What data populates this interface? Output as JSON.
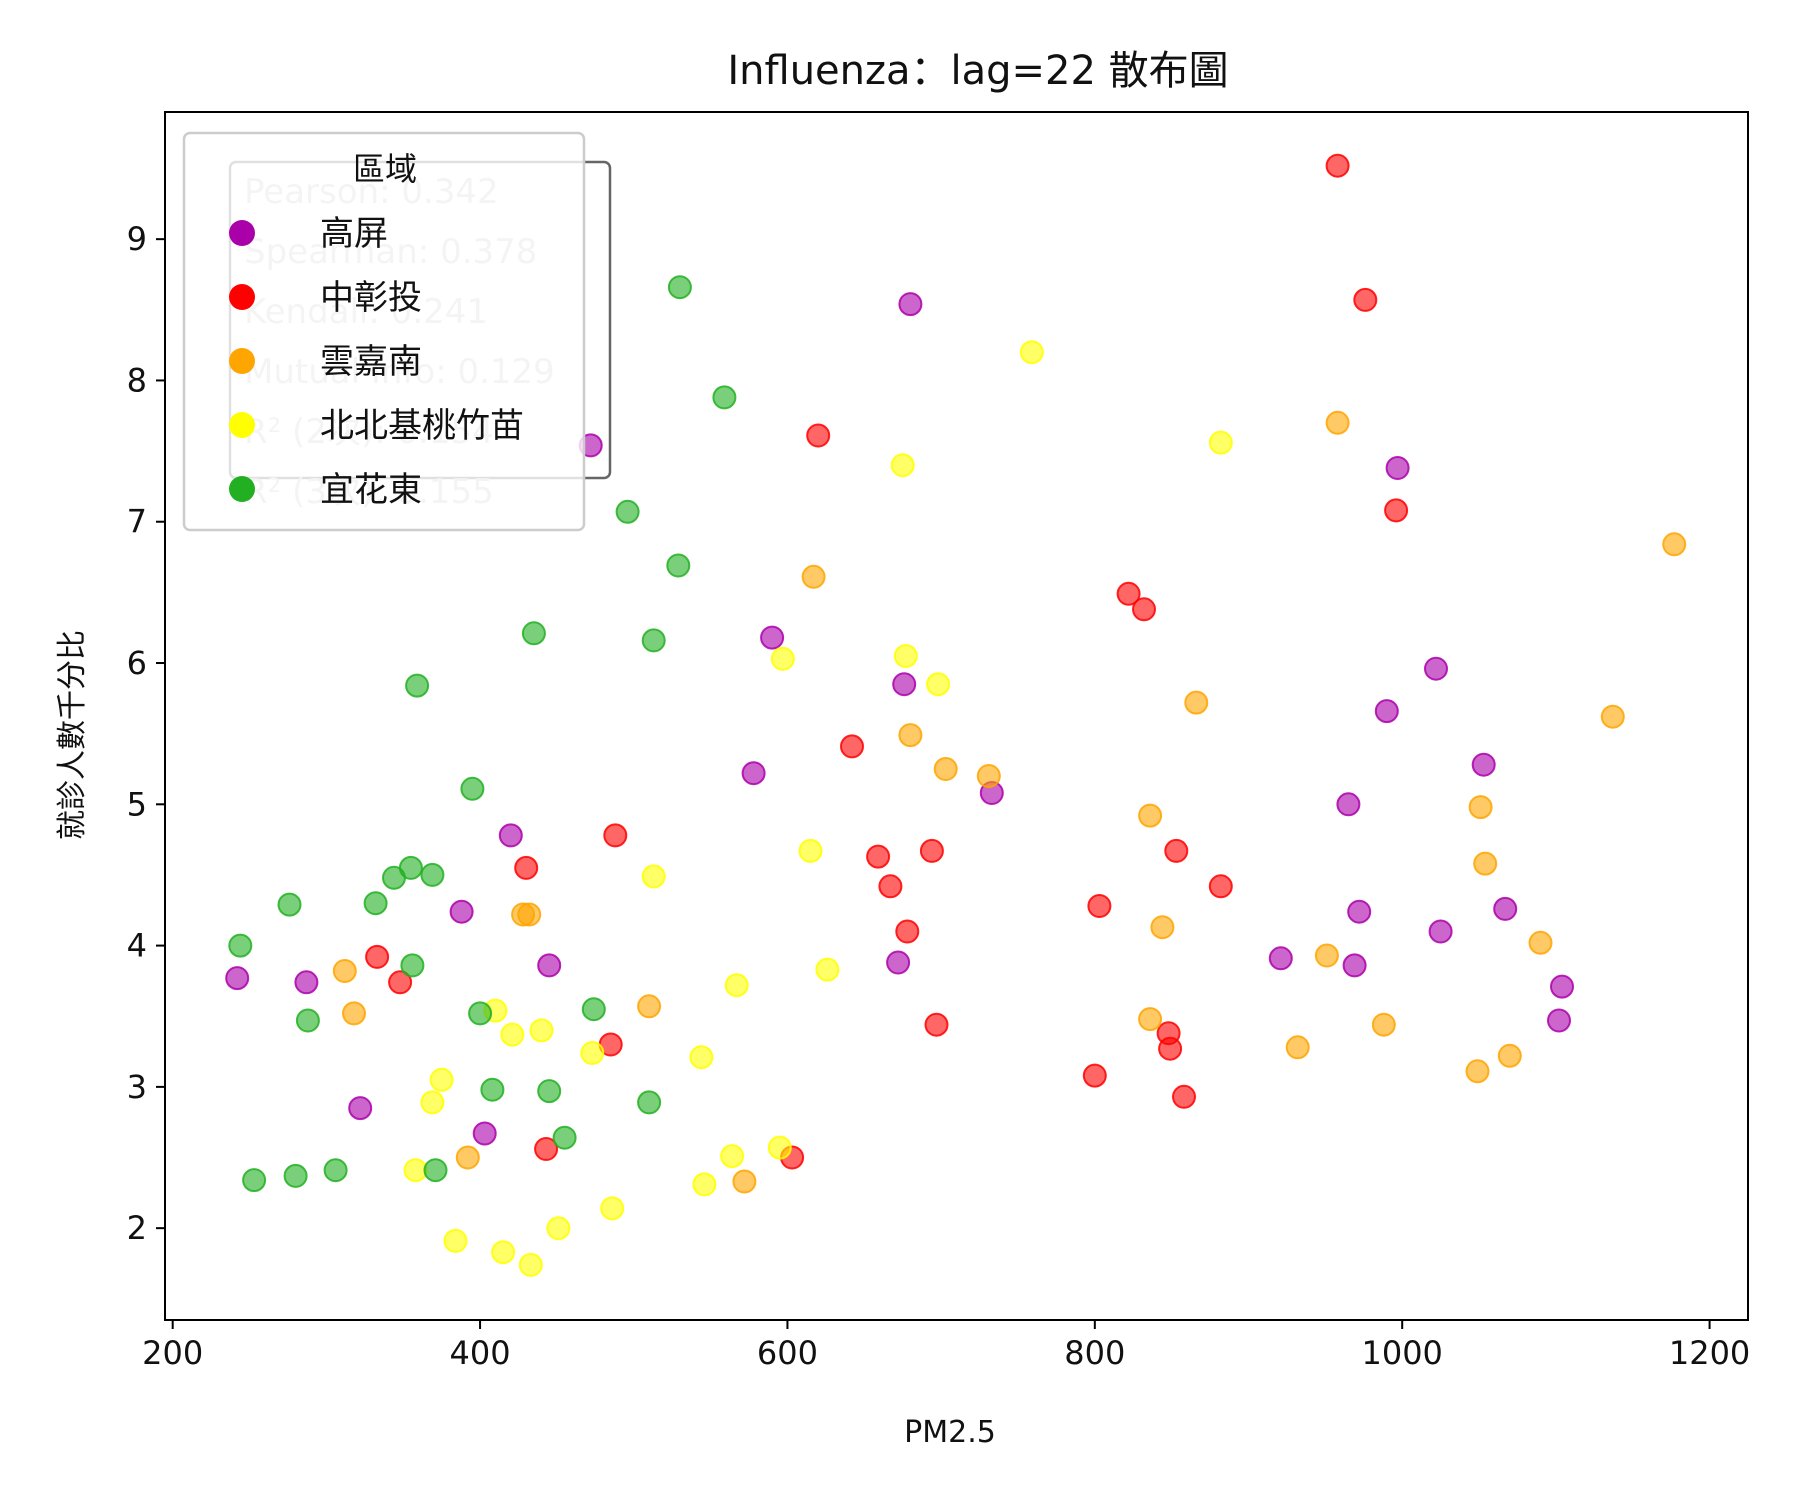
{
  "chart_data": {
    "type": "scatter",
    "title": "Influenza：lag=22 散布圖",
    "xlabel": "PM2.5",
    "ylabel": "就診人數千分比",
    "xlim": [
      195,
      1225
    ],
    "ylim": [
      1.35,
      9.9
    ],
    "xticks": [
      200,
      400,
      600,
      800,
      1000,
      1200
    ],
    "yticks": [
      2,
      3,
      4,
      5,
      6,
      7,
      8,
      9
    ],
    "grid": false,
    "legend": {
      "title": "區域",
      "placement": "top-left"
    },
    "stats_box": {
      "lines": [
        "Pearson: 0.342",
        "Spearman: 0.378",
        "Kendall: 0.241",
        "Mutual Info: 0.129",
        "R² (2次): 0.154",
        "R² (3次): 0.155"
      ]
    },
    "series": [
      {
        "name": "高屏",
        "color": "#aa00aa",
        "points": [
          [
            242,
            3.77
          ],
          [
            287,
            3.74
          ],
          [
            322,
            2.85
          ],
          [
            388,
            4.24
          ],
          [
            403,
            2.67
          ],
          [
            420,
            4.78
          ],
          [
            445,
            3.86
          ],
          [
            472,
            7.54
          ],
          [
            590,
            6.18
          ],
          [
            578,
            5.22
          ],
          [
            676,
            5.85
          ],
          [
            680,
            8.54
          ],
          [
            672,
            3.88
          ],
          [
            733,
            5.08
          ],
          [
            921,
            3.91
          ],
          [
            965,
            5.0
          ],
          [
            969,
            3.86
          ],
          [
            972,
            4.24
          ],
          [
            990,
            5.66
          ],
          [
            997,
            7.38
          ],
          [
            1022,
            5.96
          ],
          [
            1025,
            4.1
          ],
          [
            1053,
            5.28
          ],
          [
            1067,
            4.26
          ],
          [
            1102,
            3.47
          ],
          [
            1104,
            3.71
          ]
        ]
      },
      {
        "name": "中彰投",
        "color": "#ff0000",
        "points": [
          [
            333,
            3.92
          ],
          [
            348,
            3.74
          ],
          [
            430,
            4.55
          ],
          [
            443,
            2.56
          ],
          [
            485,
            3.3
          ],
          [
            488,
            4.78
          ],
          [
            603,
            2.5
          ],
          [
            620,
            7.61
          ],
          [
            642,
            5.41
          ],
          [
            659,
            4.63
          ],
          [
            667,
            4.42
          ],
          [
            678,
            4.1
          ],
          [
            694,
            4.67
          ],
          [
            697,
            3.44
          ],
          [
            800,
            3.08
          ],
          [
            803,
            4.28
          ],
          [
            822,
            6.49
          ],
          [
            832,
            6.38
          ],
          [
            848,
            3.38
          ],
          [
            849,
            3.27
          ],
          [
            853,
            4.67
          ],
          [
            858,
            2.93
          ],
          [
            882,
            4.42
          ],
          [
            958,
            9.52
          ],
          [
            976,
            8.57
          ],
          [
            996,
            7.08
          ]
        ]
      },
      {
        "name": "雲嘉南",
        "color": "#ffa500",
        "points": [
          [
            312,
            3.82
          ],
          [
            318,
            3.52
          ],
          [
            392,
            2.5
          ],
          [
            428,
            4.22
          ],
          [
            432,
            4.22
          ],
          [
            510,
            3.57
          ],
          [
            572,
            2.33
          ],
          [
            617,
            6.61
          ],
          [
            680,
            5.49
          ],
          [
            703,
            5.25
          ],
          [
            731,
            5.2
          ],
          [
            836,
            3.48
          ],
          [
            836,
            4.92
          ],
          [
            844,
            4.13
          ],
          [
            866,
            5.72
          ],
          [
            932,
            3.28
          ],
          [
            951,
            3.93
          ],
          [
            958,
            7.7
          ],
          [
            988,
            3.44
          ],
          [
            1049,
            3.11
          ],
          [
            1051,
            4.98
          ],
          [
            1054,
            4.58
          ],
          [
            1070,
            3.22
          ],
          [
            1090,
            4.02
          ],
          [
            1137,
            5.62
          ],
          [
            1177,
            6.84
          ]
        ]
      },
      {
        "name": "北北基桃竹苗",
        "color": "#ffff00",
        "points": [
          [
            358,
            2.41
          ],
          [
            369,
            2.89
          ],
          [
            375,
            3.05
          ],
          [
            384,
            1.91
          ],
          [
            410,
            3.54
          ],
          [
            415,
            1.83
          ],
          [
            421,
            3.37
          ],
          [
            433,
            1.74
          ],
          [
            440,
            3.4
          ],
          [
            451,
            2.0
          ],
          [
            473,
            3.24
          ],
          [
            486,
            2.14
          ],
          [
            513,
            4.49
          ],
          [
            544,
            3.21
          ],
          [
            546,
            2.31
          ],
          [
            564,
            2.51
          ],
          [
            567,
            3.72
          ],
          [
            595,
            2.57
          ],
          [
            597,
            6.03
          ],
          [
            615,
            4.67
          ],
          [
            626,
            3.83
          ],
          [
            675,
            7.4
          ],
          [
            677,
            6.05
          ],
          [
            698,
            5.85
          ],
          [
            759,
            8.2
          ],
          [
            882,
            7.56
          ]
        ]
      },
      {
        "name": "宜花東",
        "color": "#22b022",
        "points": [
          [
            244,
            4.0
          ],
          [
            253,
            2.34
          ],
          [
            276,
            4.29
          ],
          [
            280,
            2.37
          ],
          [
            288,
            3.47
          ],
          [
            306,
            2.41
          ],
          [
            332,
            4.3
          ],
          [
            344,
            4.48
          ],
          [
            355,
            4.55
          ],
          [
            356,
            3.86
          ],
          [
            359,
            5.84
          ],
          [
            369,
            4.5
          ],
          [
            371,
            2.41
          ],
          [
            395,
            5.11
          ],
          [
            400,
            3.52
          ],
          [
            408,
            2.98
          ],
          [
            435,
            6.21
          ],
          [
            445,
            2.97
          ],
          [
            455,
            2.64
          ],
          [
            474,
            3.55
          ],
          [
            496,
            7.07
          ],
          [
            510,
            2.89
          ],
          [
            513,
            6.16
          ],
          [
            529,
            6.69
          ],
          [
            530,
            8.66
          ],
          [
            559,
            7.88
          ]
        ]
      }
    ]
  }
}
